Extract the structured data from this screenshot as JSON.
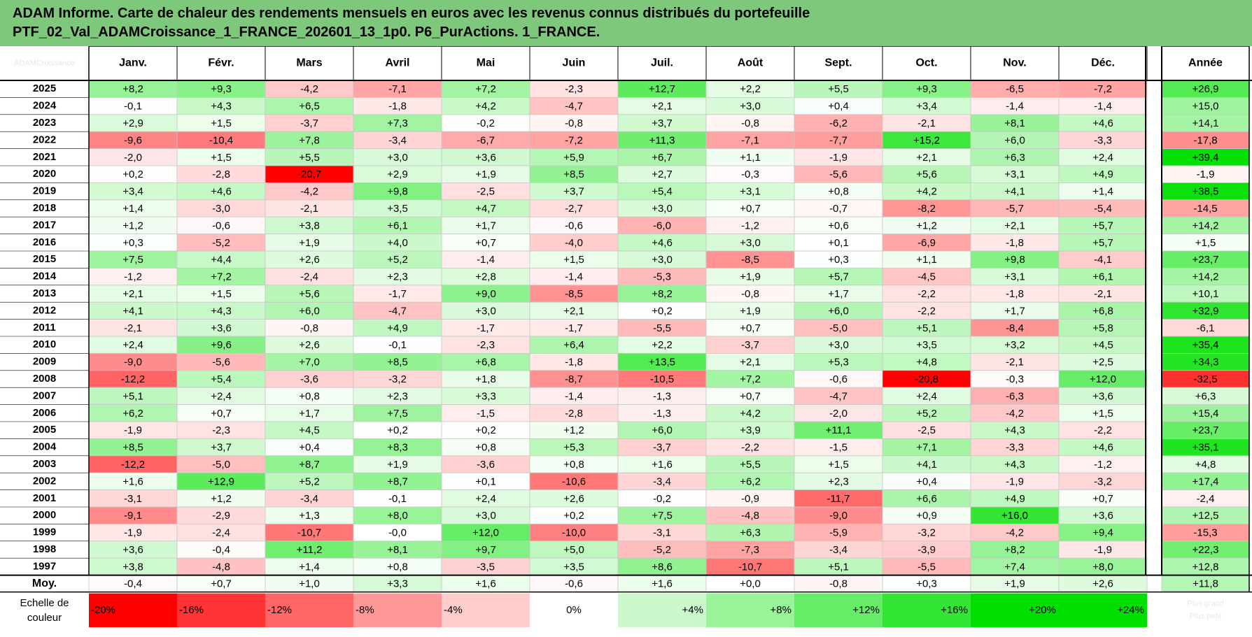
{
  "chart_data": {
    "type": "heatmap",
    "title": "ADAM Informe. Carte de chaleur des rendements mensuels en euros avec les revenus connus distribués du portefeuille",
    "subtitle": "PTF_02_Val_ADAMCroissance_1_FRANCE_202601_13_1p0. P6_PurActions. 1_FRANCE.",
    "corner_label": "ADAMCroissance",
    "months": [
      "Janv.",
      "Févr.",
      "Mars",
      "Avril",
      "Mai",
      "Juin",
      "Juil.",
      "Août",
      "Sept.",
      "Oct.",
      "Nov.",
      "Déc."
    ],
    "year_header": "Année",
    "rows": [
      {
        "year": "2025",
        "values": [
          "+8,2",
          "+9,3",
          "-4,2",
          "-7,1",
          "+7,2",
          "-2,3",
          "+12,7",
          "+2,2",
          "+5,5",
          "+9,3",
          "-6,5",
          "-7,2"
        ],
        "annual": "+26,9"
      },
      {
        "year": "2024",
        "values": [
          "-0,1",
          "+4,3",
          "+6,5",
          "-1,8",
          "+4,2",
          "-4,7",
          "+2,1",
          "+3,0",
          "+0,4",
          "+3,4",
          "-1,4",
          "-1,4"
        ],
        "annual": "+15,0"
      },
      {
        "year": "2023",
        "values": [
          "+2,9",
          "+1,5",
          "-3,7",
          "+7,3",
          "-0,2",
          "-0,8",
          "+3,7",
          "-0,8",
          "-6,2",
          "-2,1",
          "+8,1",
          "+4,6"
        ],
        "annual": "+14,1"
      },
      {
        "year": "2022",
        "values": [
          "-9,6",
          "-10,4",
          "+7,8",
          "-3,4",
          "-6,7",
          "-7,2",
          "+11,3",
          "-7,1",
          "-7,7",
          "+15,2",
          "+6,0",
          "-3,3"
        ],
        "annual": "-17,8"
      },
      {
        "year": "2021",
        "values": [
          "-2,0",
          "+1,5",
          "+5,5",
          "+3,0",
          "+3,6",
          "+5,9",
          "+6,7",
          "+1,1",
          "-1,9",
          "+2,1",
          "+6,3",
          "+2,4"
        ],
        "annual": "+39,4"
      },
      {
        "year": "2020",
        "values": [
          "+0,2",
          "-2,8",
          "-20,7",
          "+2,9",
          "+1,9",
          "+8,5",
          "+2,7",
          "-0,3",
          "-5,6",
          "+5,6",
          "+3,1",
          "+4,9"
        ],
        "annual": "-1,9"
      },
      {
        "year": "2019",
        "values": [
          "+3,4",
          "+4,6",
          "-4,2",
          "+9,8",
          "-2,5",
          "+3,7",
          "+5,4",
          "+3,1",
          "+0,8",
          "+4,2",
          "+4,1",
          "+1,4"
        ],
        "annual": "+38,5"
      },
      {
        "year": "2018",
        "values": [
          "+1,4",
          "-3,0",
          "-2,1",
          "+3,5",
          "+4,7",
          "-2,7",
          "+3,0",
          "+0,7",
          "-0,7",
          "-8,2",
          "-5,7",
          "-5,4"
        ],
        "annual": "-14,5"
      },
      {
        "year": "2017",
        "values": [
          "+1,2",
          "-0,6",
          "+3,8",
          "+6,1",
          "+1,7",
          "-0,6",
          "-6,0",
          "-1,2",
          "+0,6",
          "+1,2",
          "+2,1",
          "+5,7"
        ],
        "annual": "+14,2"
      },
      {
        "year": "2016",
        "values": [
          "+0,3",
          "-5,2",
          "+1,9",
          "+4,0",
          "+0,7",
          "-4,0",
          "+4,6",
          "+3,0",
          "+0,1",
          "-6,9",
          "-1,8",
          "+5,7"
        ],
        "annual": "+1,5"
      },
      {
        "year": "2015",
        "values": [
          "+7,5",
          "+4,4",
          "+2,6",
          "+5,2",
          "-1,4",
          "+1,5",
          "+3,0",
          "-8,5",
          "+0,3",
          "+1,1",
          "+9,8",
          "-4,1"
        ],
        "annual": "+23,7"
      },
      {
        "year": "2014",
        "values": [
          "-1,2",
          "+7,2",
          "-2,4",
          "+2,3",
          "+2,8",
          "-1,4",
          "-5,3",
          "+1,9",
          "+5,7",
          "-4,5",
          "+3,1",
          "+6,1"
        ],
        "annual": "+14,2"
      },
      {
        "year": "2013",
        "values": [
          "+2,1",
          "+1,5",
          "+5,6",
          "-1,7",
          "+9,0",
          "-8,5",
          "+8,2",
          "-0,8",
          "+1,7",
          "-2,2",
          "-1,8",
          "-2,1"
        ],
        "annual": "+10,1"
      },
      {
        "year": "2012",
        "values": [
          "+4,1",
          "+4,3",
          "+6,0",
          "-4,7",
          "+3,0",
          "+2,1",
          "+0,2",
          "+1,9",
          "+6,0",
          "-2,2",
          "+1,7",
          "+6,8"
        ],
        "annual": "+32,9"
      },
      {
        "year": "2011",
        "values": [
          "-2,1",
          "+3,6",
          "-0,8",
          "+4,9",
          "-1,7",
          "-1,7",
          "-5,5",
          "+0,7",
          "-5,0",
          "+5,1",
          "-8,4",
          "+5,8"
        ],
        "annual": "-6,1"
      },
      {
        "year": "2010",
        "values": [
          "+2,4",
          "+9,6",
          "+2,6",
          "-0,1",
          "-2,3",
          "+6,4",
          "+2,2",
          "-3,7",
          "+3,0",
          "+3,5",
          "+3,2",
          "+4,5"
        ],
        "annual": "+35,4"
      },
      {
        "year": "2009",
        "values": [
          "-9,0",
          "-5,6",
          "+7,0",
          "+8,5",
          "+6,8",
          "-1,8",
          "+13,5",
          "+2,1",
          "+5,3",
          "+4,8",
          "-2,1",
          "+2,5"
        ],
        "annual": "+34,3"
      },
      {
        "year": "2008",
        "values": [
          "-12,2",
          "+5,4",
          "-3,6",
          "-3,2",
          "+1,8",
          "-8,7",
          "-10,5",
          "+7,2",
          "-0,6",
          "-20,8",
          "-0,3",
          "+12,0"
        ],
        "annual": "-32,5"
      },
      {
        "year": "2007",
        "values": [
          "+5,1",
          "+2,4",
          "+0,8",
          "+2,3",
          "+3,3",
          "-1,4",
          "-1,3",
          "+0,7",
          "-4,7",
          "+2,4",
          "-6,3",
          "+3,6"
        ],
        "annual": "+6,3"
      },
      {
        "year": "2006",
        "values": [
          "+6,2",
          "+0,7",
          "+1,7",
          "+7,5",
          "-1,5",
          "-2,8",
          "-1,3",
          "+4,2",
          "-2,0",
          "+5,2",
          "-4,2",
          "+1,5"
        ],
        "annual": "+15,4"
      },
      {
        "year": "2005",
        "values": [
          "-1,9",
          "-2,3",
          "+4,5",
          "+0,2",
          "+0,2",
          "+1,2",
          "+6,0",
          "+3,9",
          "+11,1",
          "-2,5",
          "+4,3",
          "-2,2"
        ],
        "annual": "+23,7"
      },
      {
        "year": "2004",
        "values": [
          "+8,5",
          "+3,7",
          "+0,4",
          "+8,3",
          "+0,8",
          "+5,3",
          "-3,7",
          "-2,2",
          "-1,5",
          "+7,1",
          "-3,3",
          "+4,6"
        ],
        "annual": "+35,1"
      },
      {
        "year": "2003",
        "values": [
          "-12,2",
          "-5,0",
          "+8,7",
          "+1,9",
          "-3,6",
          "+0,8",
          "+1,6",
          "+5,5",
          "+1,5",
          "+4,1",
          "+4,3",
          "-1,2"
        ],
        "annual": "+4,8"
      },
      {
        "year": "2002",
        "values": [
          "+1,6",
          "+12,9",
          "+5,2",
          "+8,7",
          "+0,1",
          "-10,6",
          "-3,4",
          "+6,2",
          "+2,3",
          "+0,4",
          "-1,9",
          "-3,2"
        ],
        "annual": "+17,4"
      },
      {
        "year": "2001",
        "values": [
          "-3,1",
          "+1,2",
          "-3,4",
          "-0,1",
          "+2,4",
          "+2,6",
          "-0,2",
          "-0,9",
          "-11,7",
          "+6,6",
          "+4,9",
          "+0,7"
        ],
        "annual": "-2,4"
      },
      {
        "year": "2000",
        "values": [
          "-9,1",
          "-2,9",
          "+1,3",
          "+8,0",
          "+3,0",
          "+0,2",
          "+7,5",
          "-4,8",
          "-9,0",
          "+0,9",
          "+16,0",
          "+3,6"
        ],
        "annual": "+12,5"
      },
      {
        "year": "1999",
        "values": [
          "-1,9",
          "-2,4",
          "-10,7",
          "-0,0",
          "+12,0",
          "-10,0",
          "-3,1",
          "+6,3",
          "-5,9",
          "-3,2",
          "-4,2",
          "+9,4"
        ],
        "annual": "-15,3"
      },
      {
        "year": "1998",
        "values": [
          "+3,6",
          "-0,4",
          "+11,2",
          "+8,1",
          "+9,7",
          "+5,0",
          "-5,2",
          "-7,3",
          "-3,4",
          "-3,9",
          "+8,2",
          "-1,9"
        ],
        "annual": "+22,3"
      },
      {
        "year": "1997",
        "values": [
          "+3,8",
          "-4,8",
          "+1,4",
          "+0,8",
          "-3,5",
          "+3,5",
          "+8,6",
          "-10,7",
          "+5,1",
          "-5,5",
          "+7,4",
          "+8,0"
        ],
        "annual": "+12,8"
      }
    ],
    "average": {
      "label": "Moy.",
      "values": [
        "-0,4",
        "+0,7",
        "+1,0",
        "+3,3",
        "+1,6",
        "-0,6",
        "+1,6",
        "+0,0",
        "-0,8",
        "+0,3",
        "+1,9",
        "+2,6"
      ],
      "annual": "+11,8"
    },
    "scale": {
      "label_line1": "Echelle de",
      "label_line2": "couleur",
      "items": [
        "-20%",
        "-16%",
        "-12%",
        "-8%",
        "-4%",
        "0%",
        "+4%",
        "+8%",
        "+12%",
        "+16%",
        "+20%",
        "+24%"
      ],
      "values": [
        -20,
        -16,
        -12,
        -8,
        -4,
        0,
        4,
        8,
        12,
        16,
        20,
        24
      ],
      "corner_text_1": "Plus grand",
      "corner_text_2": "Plus petit"
    },
    "color_scale": {
      "negative": "#ff0000",
      "neutral": "#ffffff",
      "positive": "#00e000",
      "monthly_limit": 20,
      "annual_limit": 40
    }
  }
}
